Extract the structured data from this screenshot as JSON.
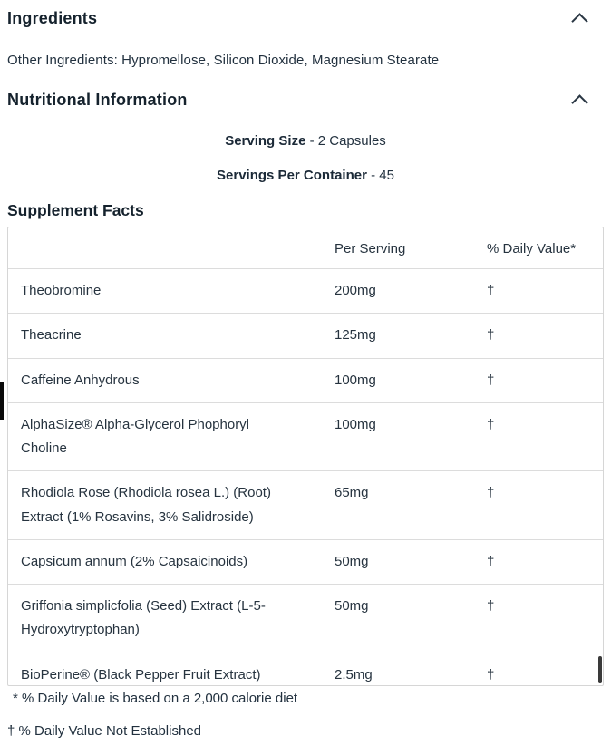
{
  "ingredients": {
    "title": "Ingredients",
    "other_ingredients": "Other Ingredients: Hypromellose, Silicon Dioxide, Magnesium Stearate"
  },
  "nutrition": {
    "title": "Nutritional Information",
    "serving_size": {
      "label": "Serving Size",
      "value": "- 2 Capsules"
    },
    "servings_per_container": {
      "label": "Servings Per Container",
      "value": "- 45"
    },
    "facts_title": "Supplement Facts"
  },
  "facts_table": {
    "columns": {
      "ingredient": "",
      "per_serving": "Per Serving",
      "daily_value": "% Daily Value*"
    },
    "rows": [
      {
        "name": "Theobromine",
        "per_serving": "200mg",
        "daily_value": "†"
      },
      {
        "name": "Theacrine",
        "per_serving": "125mg",
        "daily_value": "†"
      },
      {
        "name": "Caffeine Anhydrous",
        "per_serving": "100mg",
        "daily_value": "†"
      },
      {
        "name": "AlphaSize® Alpha-Glycerol Phophoryl\nCholine",
        "per_serving": "100mg",
        "daily_value": "†"
      },
      {
        "name": "Rhodiola Rose (Rhodiola rosea L.) (Root)\nExtract (1% Rosavins, 3% Salidroside)",
        "per_serving": "65mg",
        "daily_value": "†"
      },
      {
        "name": "Capsicum annum (2% Capsaicinoids)",
        "per_serving": "50mg",
        "daily_value": "†"
      },
      {
        "name": "Griffonia simplicfolia (Seed) Extract (L-5-\nHydroxytryptophan)",
        "per_serving": "50mg",
        "daily_value": "†"
      },
      {
        "name": "BioPerine® (Black Pepper Fruit Extract)",
        "per_serving": "2.5mg",
        "daily_value": "†"
      }
    ]
  },
  "footnotes": {
    "daily_value_basis": "* % Daily Value is based on a 2,000 calorie diet",
    "not_established": "† % Daily Value Not Established"
  },
  "colors": {
    "heading": "#15222d",
    "body_text": "#22313f",
    "table_border": "#d6d6d6"
  }
}
